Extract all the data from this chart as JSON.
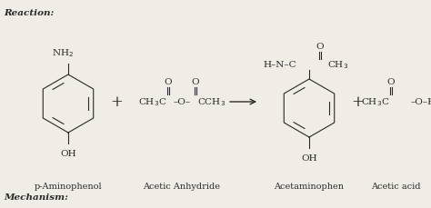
{
  "bg_color": "#f0ece6",
  "title_reaction": "Reaction:",
  "title_mechanism": "Mechanism:",
  "label_1": "p-Aminophenol",
  "label_2": "Acetic Anhydride",
  "label_3": "Acetaminophen",
  "label_4": "Acetic acid",
  "font_color": "#2a2a2a",
  "font_size_label": 7.0,
  "font_size_struct": 7.5,
  "font_size_title": 7.5
}
